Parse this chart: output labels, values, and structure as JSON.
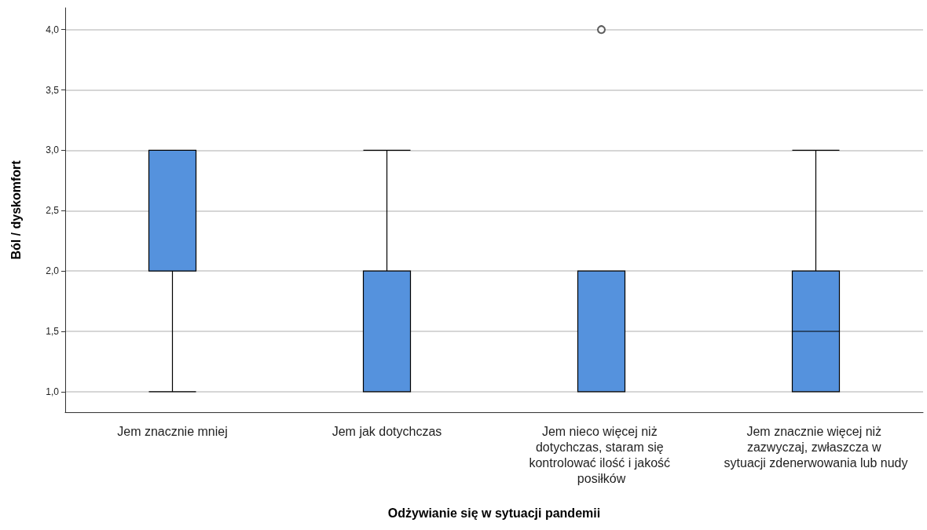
{
  "chart_data": {
    "type": "box",
    "xlabel": "Odżywianie się w sytuacji pandemii",
    "ylabel": "Ból / dyskomfort",
    "categories": [
      "Jem znacznie mniej",
      "Jem jak dotychczas",
      "Jem nieco więcej niż dotychczas, staram się kontrolować ilość i jakość posiłków",
      "Jem znacznie więcej niż zazwyczaj, zwłaszcza w sytuacji zdenerwowania lub nudy"
    ],
    "boxes": [
      {
        "low": 1,
        "q1": 2,
        "median": 2,
        "q3": 3,
        "high": 3
      },
      {
        "low": 1,
        "q1": 1,
        "median": 2,
        "q3": 2,
        "high": 3
      },
      {
        "low": 1,
        "q1": 1,
        "median": 1,
        "q3": 2,
        "high": 2,
        "outliers": [
          4
        ]
      },
      {
        "low": 1,
        "q1": 1,
        "median": 1.5,
        "q3": 2,
        "high": 3
      }
    ],
    "color": "#5592dd",
    "ylim": [
      0.83,
      4.18
    ],
    "yticks": [
      {
        "value": 1,
        "label": "1,0"
      },
      {
        "value": 1.5,
        "label": "1,5"
      },
      {
        "value": 2,
        "label": "2,0"
      },
      {
        "value": 2.5,
        "label": "2,5"
      },
      {
        "value": 3,
        "label": "3,0"
      },
      {
        "value": 3.5,
        "label": "3,5"
      },
      {
        "value": 4,
        "label": "4,0"
      }
    ],
    "grid": "y"
  }
}
